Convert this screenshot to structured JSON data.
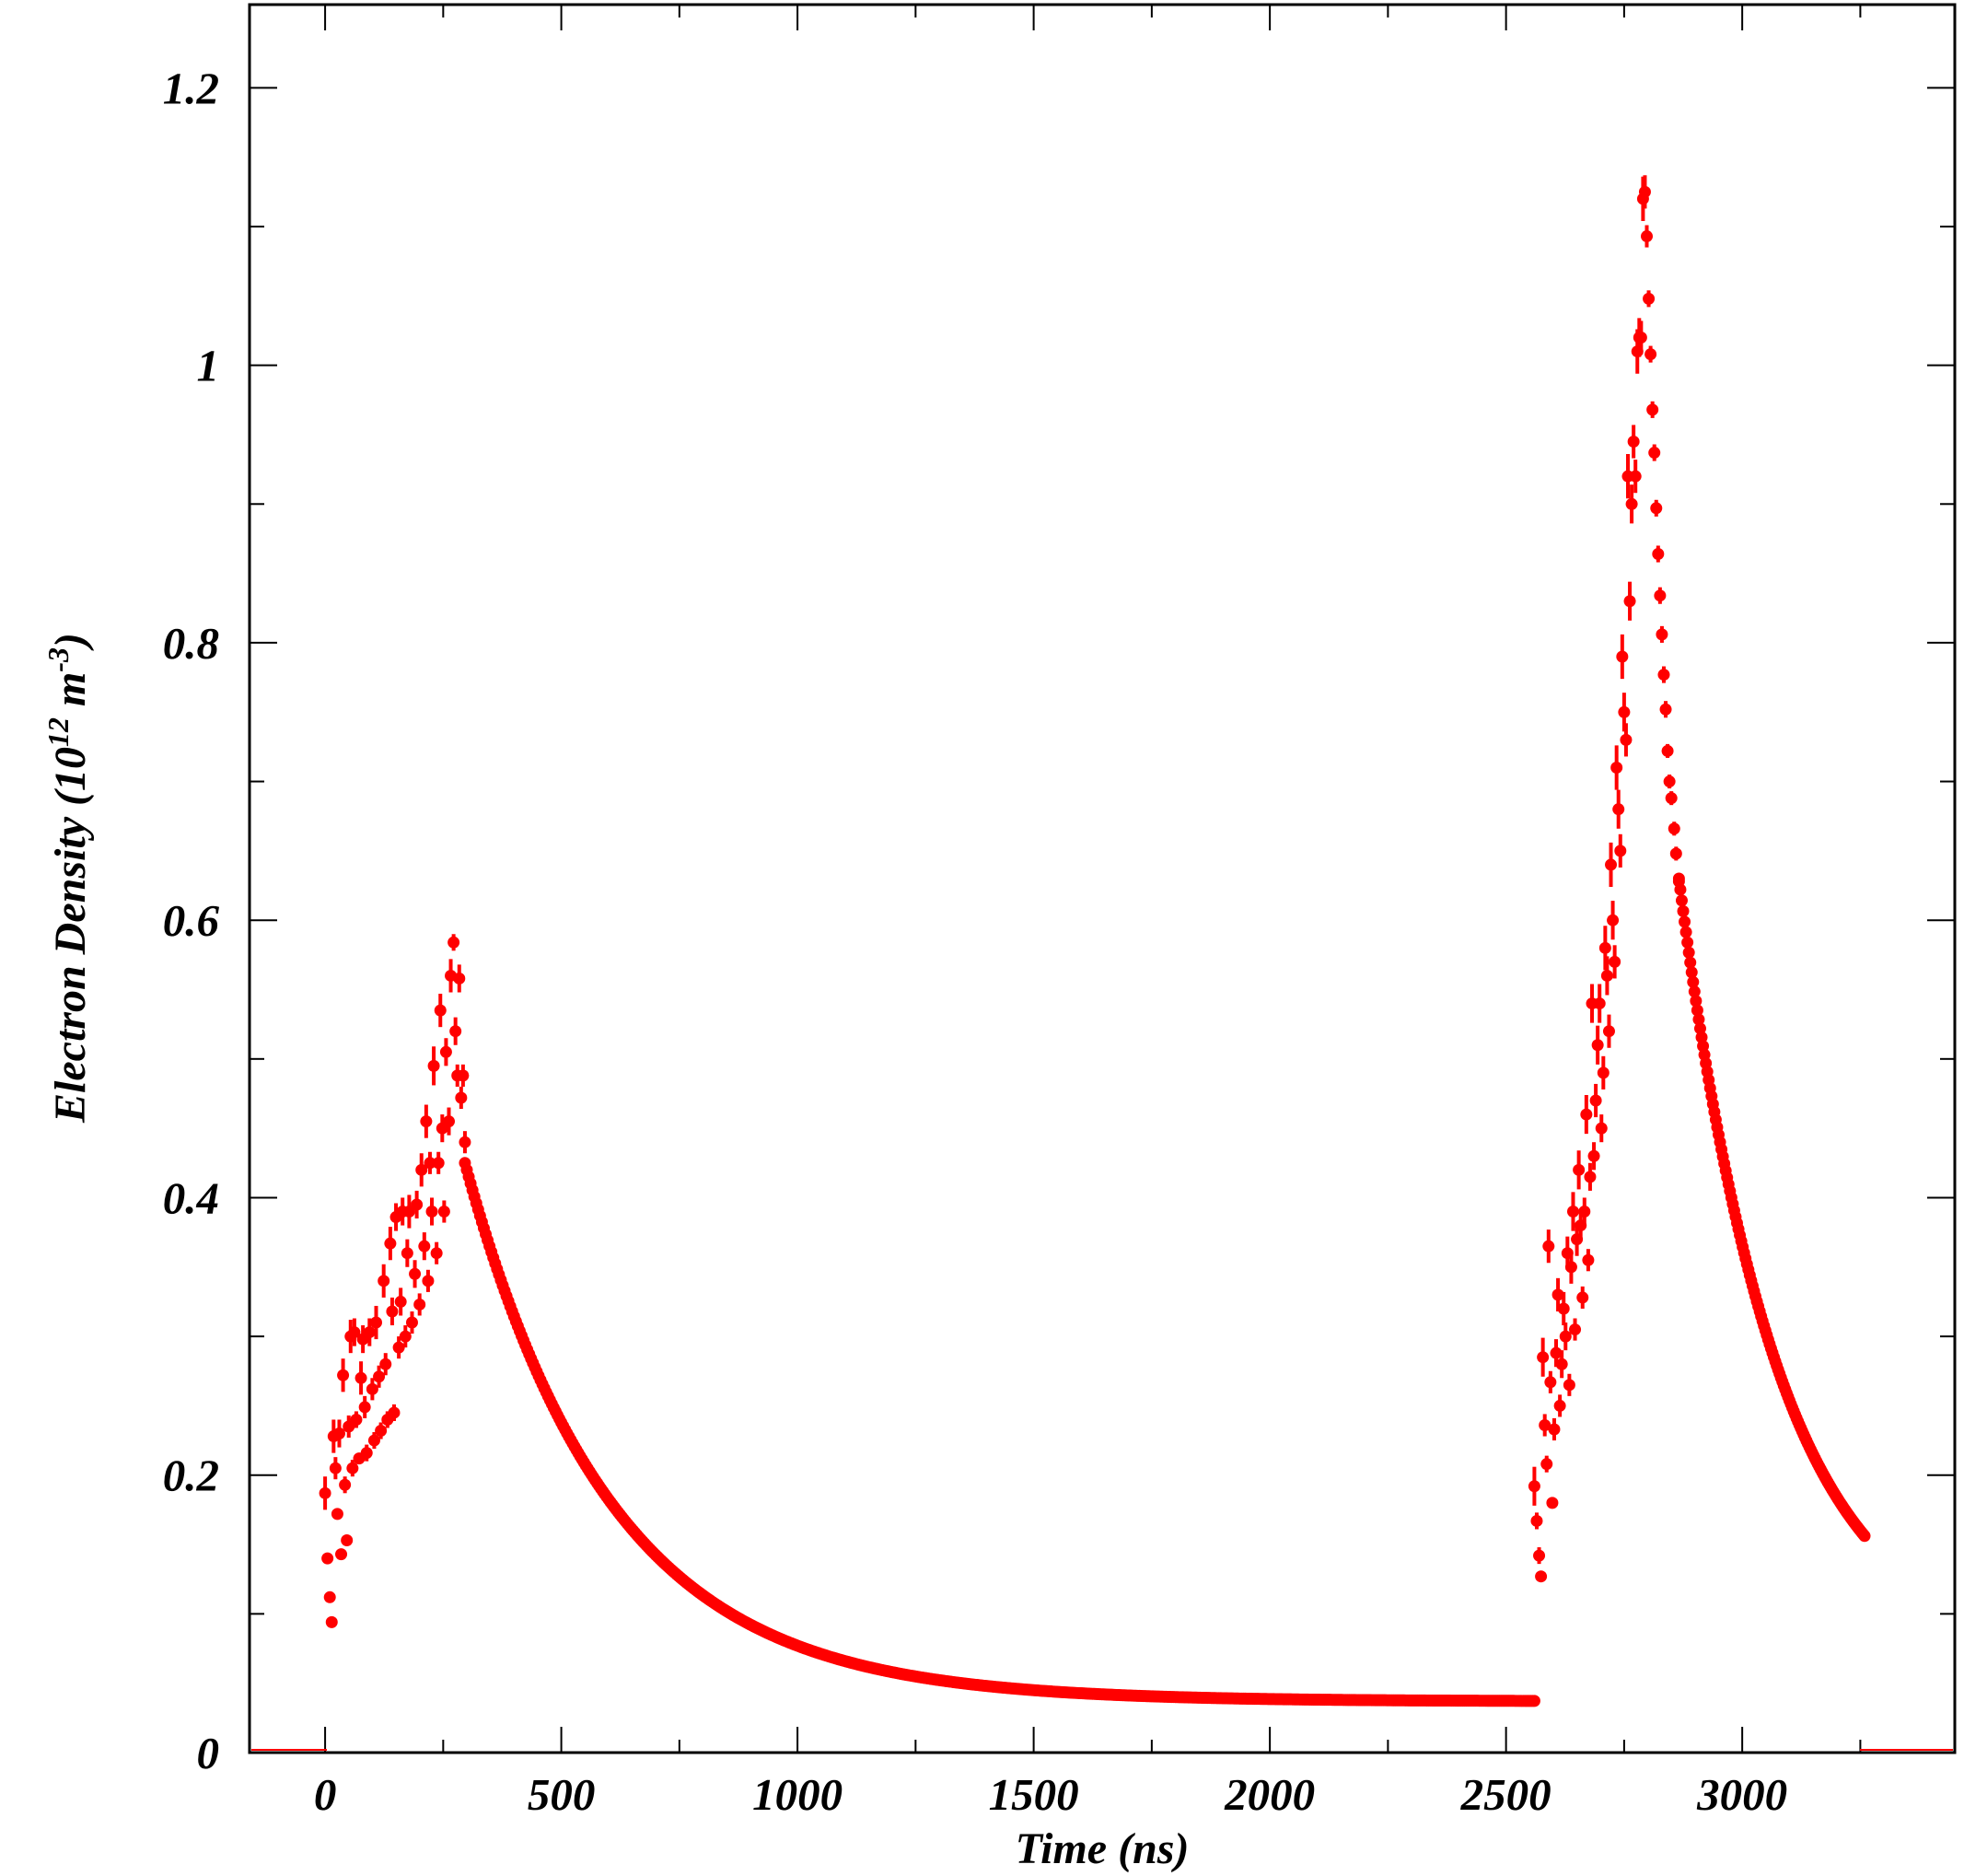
{
  "chart_data": {
    "type": "scatter",
    "title": "",
    "xlabel": "Time (ns)",
    "ylabel_main": "Electron Density (10",
    "ylabel_sup1": "12",
    "ylabel_mid": " m",
    "ylabel_sup2": "-3",
    "ylabel_end": ")",
    "xlim": [
      -160,
      3450
    ],
    "ylim": [
      0,
      1.26
    ],
    "x_ticks": [
      0,
      500,
      1000,
      1500,
      2000,
      2500,
      3000
    ],
    "x_tick_labels": [
      "0",
      "500",
      "1000",
      "1500",
      "2000",
      "2500",
      "3000"
    ],
    "y_ticks": [
      0,
      0.2,
      0.4,
      0.6,
      0.8,
      1.0,
      1.2
    ],
    "y_tick_labels": [
      "0",
      "0.2",
      "0.4",
      "0.6",
      "0.8",
      "1",
      "1.2"
    ],
    "x_minor_step": 250,
    "y_minor_step": 0.1,
    "grid": false,
    "legend": "none",
    "series": [
      {
        "color": "#ff0000",
        "note_markers": "dots with vertical error bars",
        "points": [
          [
            0,
            0.187,
            0.012
          ],
          [
            5,
            0.14,
            0.004
          ],
          [
            10,
            0.112,
            0.004
          ],
          [
            14,
            0.094,
            0.003
          ],
          [
            18,
            0.228,
            0.012
          ],
          [
            22,
            0.205,
            0.008
          ],
          [
            26,
            0.172,
            0.004
          ],
          [
            30,
            0.23,
            0.01
          ],
          [
            34,
            0.143,
            0.004
          ],
          [
            38,
            0.272,
            0.012
          ],
          [
            42,
            0.193,
            0.006
          ],
          [
            46,
            0.153,
            0.004
          ],
          [
            50,
            0.235,
            0.008
          ],
          [
            54,
            0.3,
            0.012
          ],
          [
            58,
            0.205,
            0.006
          ],
          [
            62,
            0.303,
            0.01
          ],
          [
            66,
            0.24,
            0.006
          ],
          [
            72,
            0.212,
            0.004
          ],
          [
            76,
            0.27,
            0.012
          ],
          [
            80,
            0.298,
            0.01
          ],
          [
            84,
            0.249,
            0.008
          ],
          [
            88,
            0.216,
            0.006
          ],
          [
            94,
            0.303,
            0.01
          ],
          [
            100,
            0.262,
            0.008
          ],
          [
            104,
            0.225,
            0.006
          ],
          [
            108,
            0.31,
            0.012
          ],
          [
            114,
            0.271,
            0.008
          ],
          [
            118,
            0.232,
            0.006
          ],
          [
            124,
            0.34,
            0.012
          ],
          [
            128,
            0.28,
            0.008
          ],
          [
            132,
            0.24,
            0.006
          ],
          [
            138,
            0.367,
            0.012
          ],
          [
            142,
            0.318,
            0.01
          ],
          [
            146,
            0.245,
            0.006
          ],
          [
            150,
            0.386,
            0.01
          ],
          [
            156,
            0.292,
            0.008
          ],
          [
            160,
            0.325,
            0.01
          ],
          [
            164,
            0.39,
            0.01
          ],
          [
            170,
            0.3,
            0.008
          ],
          [
            174,
            0.36,
            0.01
          ],
          [
            178,
            0.39,
            0.012
          ],
          [
            184,
            0.31,
            0.008
          ],
          [
            190,
            0.345,
            0.01
          ],
          [
            194,
            0.395,
            0.01
          ],
          [
            200,
            0.323,
            0.008
          ],
          [
            204,
            0.42,
            0.012
          ],
          [
            210,
            0.365,
            0.01
          ],
          [
            214,
            0.455,
            0.012
          ],
          [
            218,
            0.34,
            0.008
          ],
          [
            222,
            0.425,
            0.008
          ],
          [
            226,
            0.39,
            0.01
          ],
          [
            230,
            0.495,
            0.014
          ],
          [
            236,
            0.36,
            0.008
          ],
          [
            240,
            0.425,
            0.008
          ],
          [
            244,
            0.535,
            0.012
          ],
          [
            248,
            0.45,
            0.01
          ],
          [
            252,
            0.39,
            0.008
          ],
          [
            256,
            0.505,
            0.01
          ],
          [
            262,
            0.455,
            0.01
          ],
          [
            266,
            0.56,
            0.012
          ],
          [
            272,
            0.584,
            0.006
          ],
          [
            276,
            0.52,
            0.01
          ],
          [
            280,
            0.488,
            0.008
          ],
          [
            284,
            0.558,
            0.01
          ],
          [
            288,
            0.472,
            0.008
          ],
          [
            292,
            0.488,
            0.008
          ],
          [
            296,
            0.44,
            0.008
          ],
          [
            2560,
            0.192,
            0.014
          ],
          [
            2565,
            0.167,
            0.006
          ],
          [
            2570,
            0.142,
            0.006
          ],
          [
            2574,
            0.127,
            0.004
          ],
          [
            2578,
            0.285,
            0.014
          ],
          [
            2582,
            0.236,
            0.008
          ],
          [
            2586,
            0.208,
            0.006
          ],
          [
            2590,
            0.365,
            0.012
          ],
          [
            2594,
            0.267,
            0.008
          ],
          [
            2598,
            0.18,
            0.004
          ],
          [
            2602,
            0.233,
            0.008
          ],
          [
            2606,
            0.288,
            0.01
          ],
          [
            2610,
            0.33,
            0.012
          ],
          [
            2614,
            0.25,
            0.008
          ],
          [
            2618,
            0.28,
            0.01
          ],
          [
            2622,
            0.32,
            0.012
          ],
          [
            2626,
            0.3,
            0.01
          ],
          [
            2630,
            0.36,
            0.012
          ],
          [
            2634,
            0.265,
            0.008
          ],
          [
            2638,
            0.35,
            0.012
          ],
          [
            2642,
            0.39,
            0.014
          ],
          [
            2646,
            0.305,
            0.008
          ],
          [
            2650,
            0.37,
            0.012
          ],
          [
            2654,
            0.42,
            0.014
          ],
          [
            2658,
            0.38,
            0.01
          ],
          [
            2662,
            0.328,
            0.008
          ],
          [
            2666,
            0.39,
            0.01
          ],
          [
            2670,
            0.46,
            0.014
          ],
          [
            2674,
            0.355,
            0.008
          ],
          [
            2678,
            0.415,
            0.01
          ],
          [
            2682,
            0.54,
            0.014
          ],
          [
            2686,
            0.43,
            0.01
          ],
          [
            2690,
            0.47,
            0.012
          ],
          [
            2694,
            0.51,
            0.014
          ],
          [
            2698,
            0.54,
            0.014
          ],
          [
            2702,
            0.45,
            0.01
          ],
          [
            2706,
            0.49,
            0.012
          ],
          [
            2710,
            0.58,
            0.016
          ],
          [
            2714,
            0.56,
            0.014
          ],
          [
            2718,
            0.52,
            0.012
          ],
          [
            2722,
            0.64,
            0.016
          ],
          [
            2726,
            0.6,
            0.014
          ],
          [
            2730,
            0.57,
            0.012
          ],
          [
            2734,
            0.71,
            0.016
          ],
          [
            2738,
            0.68,
            0.014
          ],
          [
            2742,
            0.65,
            0.012
          ],
          [
            2746,
            0.79,
            0.016
          ],
          [
            2750,
            0.75,
            0.014
          ],
          [
            2754,
            0.73,
            0.012
          ],
          [
            2758,
            0.92,
            0.016
          ],
          [
            2762,
            0.83,
            0.014
          ],
          [
            2766,
            0.9,
            0.014
          ],
          [
            2770,
            0.945,
            0.012
          ],
          [
            2774,
            0.92,
            0.012
          ],
          [
            2778,
            1.01,
            0.016
          ],
          [
            2782,
            1.02,
            0.014
          ],
          [
            2786,
            1.02,
            0.012
          ],
          [
            2790,
            1.12,
            0.016
          ],
          [
            2794,
            1.125,
            0.012
          ],
          [
            2798,
            1.093,
            0.008
          ],
          [
            2802,
            1.048,
            0.006
          ],
          [
            2806,
            1.008,
            0.006
          ],
          [
            2810,
            0.968,
            0.006
          ],
          [
            2814,
            0.937,
            0.006
          ],
          [
            2818,
            0.897,
            0.006
          ],
          [
            2822,
            0.864,
            0.006
          ],
          [
            2826,
            0.834,
            0.006
          ],
          [
            2830,
            0.806,
            0.006
          ],
          [
            2834,
            0.777,
            0.006
          ],
          [
            2838,
            0.752,
            0.006
          ],
          [
            2842,
            0.722,
            0.005
          ],
          [
            2846,
            0.7,
            0.005
          ],
          [
            2850,
            0.688,
            0.005
          ],
          [
            2856,
            0.666,
            0.005
          ],
          [
            2860,
            0.648,
            0.005
          ],
          [
            2866,
            0.628,
            0.005
          ]
        ],
        "decay_curves": [
          {
            "t_start": 296,
            "t_end": 2560,
            "t0": 296,
            "y0": 0.425,
            "floor": 0.037,
            "tau": 310,
            "step": 4
          },
          {
            "t_start": 2866,
            "t_end": 3260,
            "t0": 2866,
            "y0": 0.63,
            "floor": 0.07,
            "tau": 210,
            "step": 3
          }
        ]
      }
    ]
  }
}
